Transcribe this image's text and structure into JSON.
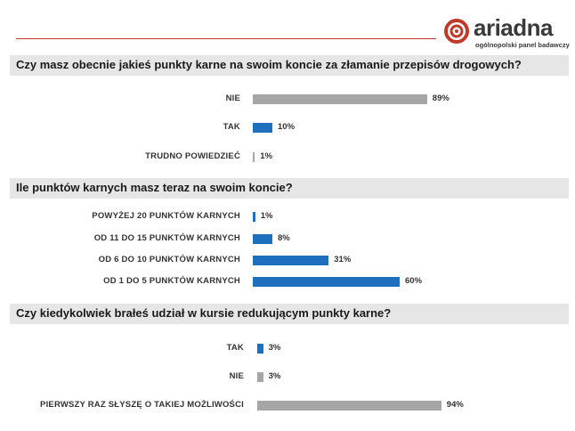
{
  "logo": {
    "icon": "spiral-logo-icon",
    "name": "ariadna",
    "tagline": "ogólnopolski panel badawczy",
    "accent_color": "#c0392b"
  },
  "colors": {
    "gray_bar": "#a6a6a6",
    "blue_bar": "#1f6fbf",
    "question_bg": "#e6e6e6"
  },
  "chart_data": [
    {
      "type": "bar",
      "orientation": "horizontal",
      "title": "Czy masz obecnie jakieś punkty karne na swoim koncie za złamanie przepisów drogowych?",
      "categories": [
        "NIE",
        "TAK",
        "TRUDNO POWIEDZIEĆ"
      ],
      "values": [
        89,
        10,
        1
      ],
      "value_labels": [
        "89%",
        "10%",
        "1%"
      ],
      "bar_colors": [
        "gray",
        "blue",
        "gray"
      ],
      "xlim": [
        0,
        100
      ],
      "grid": false
    },
    {
      "type": "bar",
      "orientation": "horizontal",
      "title": "Ile punktów karnych masz teraz na swoim koncie?",
      "categories": [
        "POWYŻEJ 20 PUNKTÓW KARNYCH",
        "OD 11 DO 15 PUNKTÓW KARNYCH",
        "OD 6 DO 10 PUNKTÓW KARNYCH",
        "OD 1 DO 5 PUNKTÓW KARNYCH"
      ],
      "values": [
        1,
        8,
        31,
        60
      ],
      "value_labels": [
        "1%",
        "8%",
        "31%",
        "60%"
      ],
      "bar_colors": [
        "blue",
        "blue",
        "blue",
        "blue"
      ],
      "xlim": [
        0,
        100
      ],
      "grid": false
    },
    {
      "type": "bar",
      "orientation": "horizontal",
      "title": "Czy kiedykolwiek brałeś udział w kursie redukującym punkty karne?",
      "categories": [
        "TAK",
        "NIE",
        "PIERWSZY RAZ SŁYSZĘ O TAKIEJ MOŻLIWOŚCI"
      ],
      "values": [
        3,
        3,
        94
      ],
      "value_labels": [
        "3%",
        "3%",
        "94%"
      ],
      "bar_colors": [
        "blue",
        "gray",
        "gray"
      ],
      "xlim": [
        0,
        100
      ],
      "grid": false
    }
  ]
}
